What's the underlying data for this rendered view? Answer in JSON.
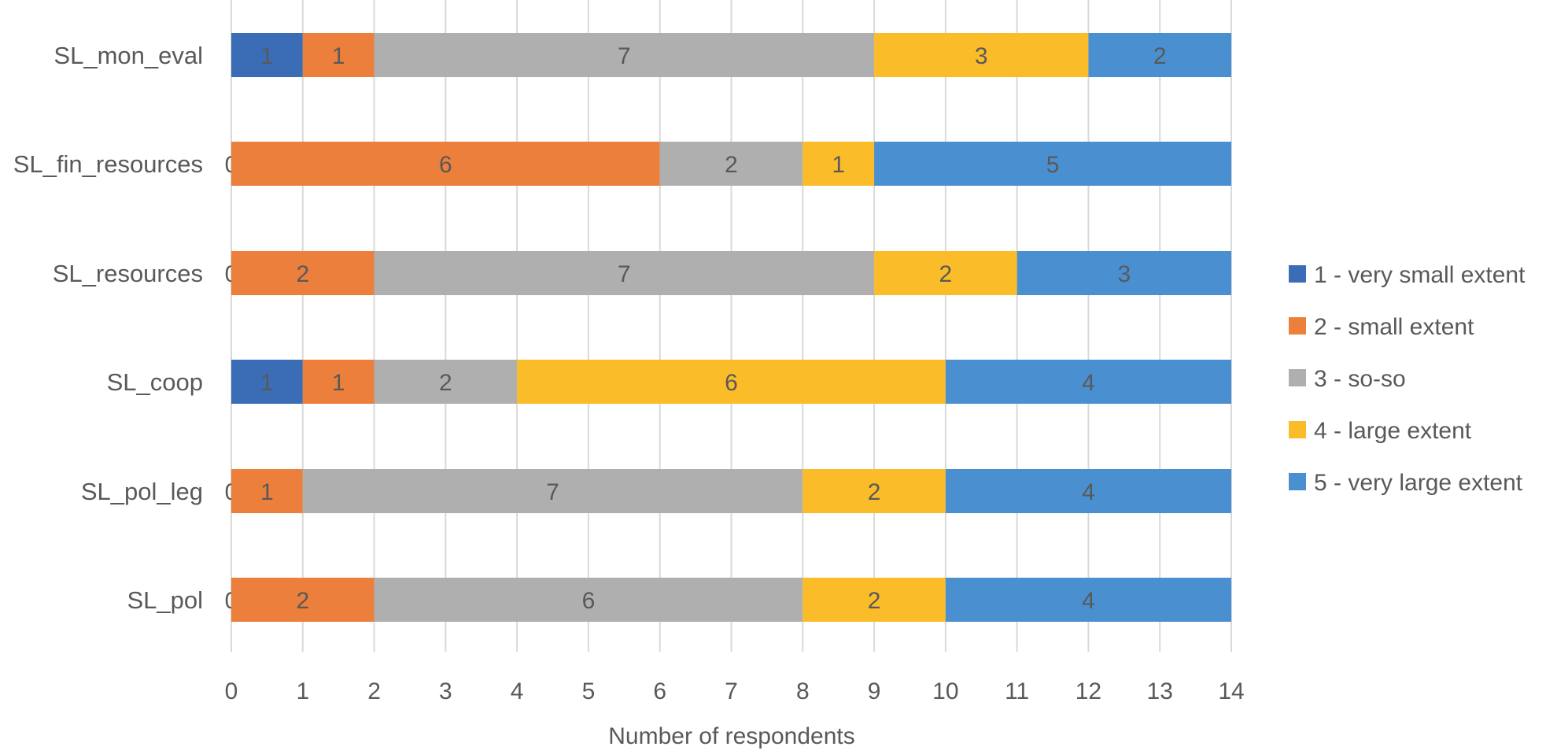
{
  "chart_data": {
    "type": "bar",
    "orientation": "horizontal",
    "stacked": true,
    "categories": [
      "SL_mon_eval",
      "SL_fin_resources",
      "SL_resources",
      "SL_coop",
      "SL_pol_leg",
      "SL_pol"
    ],
    "series": [
      {
        "name": "1 - very small extent",
        "color": "#3A6DB5",
        "values": [
          1,
          0,
          0,
          1,
          0,
          0
        ]
      },
      {
        "name": "2 - small extent",
        "color": "#EC7F3B",
        "values": [
          1,
          6,
          2,
          1,
          1,
          2
        ]
      },
      {
        "name": "3 - so-so",
        "color": "#AFAFAF",
        "values": [
          7,
          2,
          7,
          2,
          7,
          6
        ]
      },
      {
        "name": "4 - large extent",
        "color": "#FBBC2A",
        "values": [
          3,
          1,
          2,
          6,
          2,
          2
        ]
      },
      {
        "name": "5 - very large extent",
        "color": "#4A90D0",
        "values": [
          2,
          5,
          3,
          4,
          4,
          4
        ]
      }
    ],
    "xlabel": "Number of respondents",
    "ylabel": "",
    "xlim": [
      0,
      14
    ],
    "xticks": [
      "0",
      "1",
      "2",
      "3",
      "4",
      "5",
      "6",
      "7",
      "8",
      "9",
      "10",
      "11",
      "12",
      "13",
      "14"
    ],
    "grid": true,
    "legend": "right"
  }
}
